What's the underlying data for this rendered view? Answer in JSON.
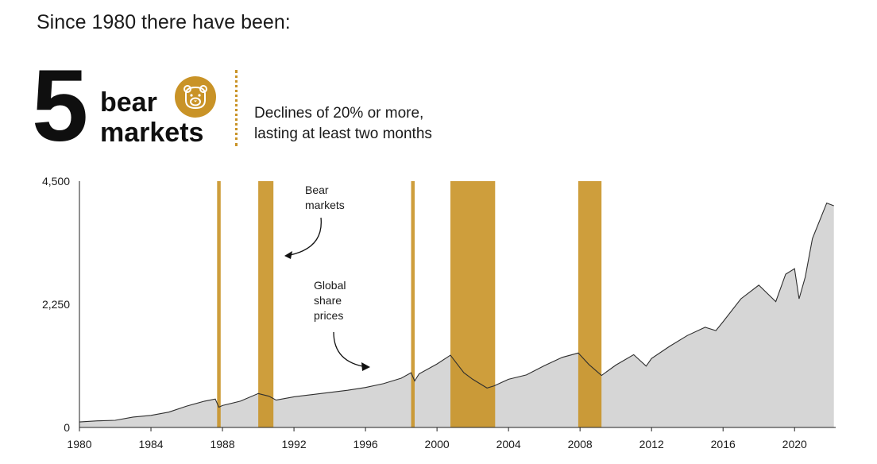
{
  "header": {
    "intro": "Since 1980 there have been:",
    "count": "5",
    "label_line1": "bear",
    "label_line2": "markets",
    "desc_line1": "Declines of 20% or more,",
    "desc_line2": "lasting at least two months"
  },
  "colors": {
    "gold": "#c99327",
    "area_fill": "#d6d6d6",
    "line": "#2e2e2e"
  },
  "icons": {
    "badge": "bear-face-icon"
  },
  "chart_data": {
    "type": "area",
    "title": "",
    "xlabel": "",
    "ylabel": "",
    "xlim": [
      1980,
      2022.3
    ],
    "ylim": [
      0,
      4500
    ],
    "x_ticks": [
      1980,
      1984,
      1988,
      1992,
      1996,
      2000,
      2004,
      2008,
      2012,
      2016,
      2020
    ],
    "x_tick_labels": [
      "1980",
      "1984",
      "1988",
      "1992",
      "1996",
      "2000",
      "2004",
      "2008",
      "2012",
      "2016",
      "2020"
    ],
    "y_ticks": [
      0,
      2250,
      4500
    ],
    "y_tick_labels": [
      "0",
      "2,250",
      "4,500"
    ],
    "grid": false,
    "series": [
      {
        "x": [
          1980,
          1981,
          1982,
          1983,
          1984,
          1985,
          1986,
          1987,
          1987.6,
          1987.8,
          1988,
          1989,
          1990,
          1990.6,
          1991,
          1992,
          1993,
          1994,
          1995,
          1996,
          1997,
          1998,
          1998.55,
          1998.75,
          1999,
          2000,
          2000.75,
          2001.5,
          2002,
          2002.8,
          2003.2,
          2004,
          2005,
          2006,
          2007,
          2007.9,
          2008.5,
          2009.2,
          2010,
          2011,
          2011.7,
          2012,
          2013,
          2014,
          2015,
          2015.6,
          2016,
          2017,
          2018,
          2018.95,
          2019.5,
          2020,
          2020.25,
          2020.6,
          2021,
          2021.8,
          2022.2
        ],
        "y": [
          100,
          120,
          130,
          190,
          220,
          280,
          390,
          480,
          520,
          370,
          400,
          480,
          620,
          570,
          500,
          560,
          600,
          640,
          680,
          730,
          800,
          900,
          1000,
          850,
          980,
          1160,
          1320,
          1000,
          880,
          720,
          760,
          880,
          960,
          1130,
          1280,
          1360,
          1150,
          950,
          1140,
          1330,
          1120,
          1260,
          1480,
          1680,
          1830,
          1770,
          1930,
          2350,
          2600,
          2300,
          2800,
          2900,
          2350,
          2750,
          3450,
          4100,
          4050
        ]
      }
    ],
    "bear_markets": [
      {
        "start": 1987.7,
        "end": 1987.9
      },
      {
        "start": 1990.0,
        "end": 1990.85
      },
      {
        "start": 1998.55,
        "end": 1998.75
      },
      {
        "start": 2000.75,
        "end": 2003.25
      },
      {
        "start": 2007.9,
        "end": 2009.2
      }
    ],
    "annotations": [
      {
        "lines": [
          "Bear",
          "markets"
        ]
      },
      {
        "lines": [
          "Global",
          "share",
          "prices"
        ]
      }
    ]
  }
}
